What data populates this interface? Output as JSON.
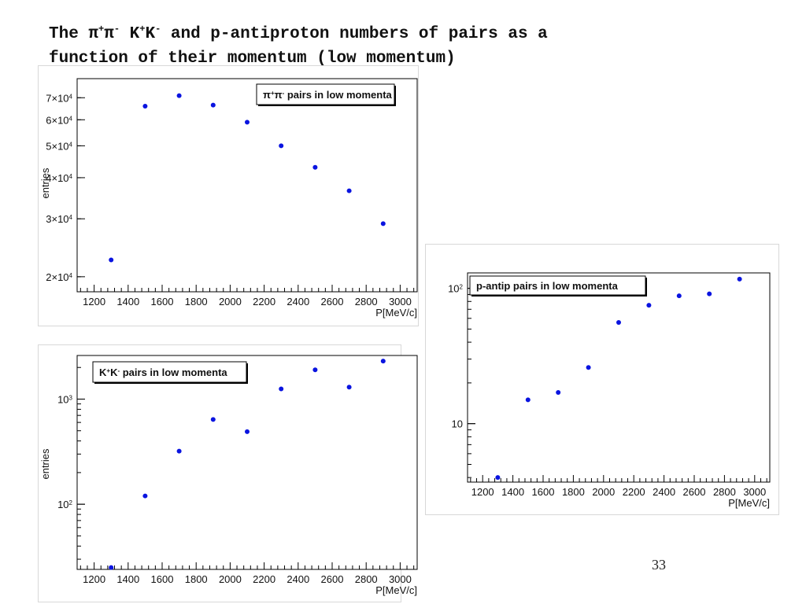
{
  "slide": {
    "title_parts": [
      "The π",
      "+",
      "π",
      "-",
      " K",
      "+",
      "K",
      "-",
      " and p-antiproton numbers of pairs as a"
    ],
    "title_line2": "function of their momentum (low momentum)",
    "page_number": "33"
  },
  "colors": {
    "marker": "#0a14e0",
    "axis": "#000000",
    "frame_bg": "#ffffff",
    "slide_bg": "#ffffff"
  },
  "chart_data": [
    {
      "id": "pipi",
      "type": "scatter",
      "legend_parts": [
        "π",
        "+",
        "π",
        "-",
        " pairs in low momenta"
      ],
      "legend_position": "top-right",
      "xlabel": "P[MeV/c]",
      "ylabel": "entries",
      "yscale": "log",
      "xlim": [
        1100,
        3100
      ],
      "ylim": [
        18000,
        80000
      ],
      "x_ticks": [
        1200,
        1400,
        1600,
        1800,
        2000,
        2200,
        2400,
        2600,
        2800,
        3000
      ],
      "y_ticks": [
        {
          "value": 20000,
          "mant": "2×10",
          "exp": "4"
        },
        {
          "value": 30000,
          "mant": "3×10",
          "exp": "4"
        },
        {
          "value": 40000,
          "mant": "4×10",
          "exp": "4"
        },
        {
          "value": 50000,
          "mant": "5×10",
          "exp": "4"
        },
        {
          "value": 60000,
          "mant": "6×10",
          "exp": "4"
        },
        {
          "value": 70000,
          "mant": "7×10",
          "exp": "4"
        }
      ],
      "x": [
        1300,
        1500,
        1700,
        1900,
        2100,
        2300,
        2500,
        2700,
        2900
      ],
      "y": [
        22500,
        66000,
        71000,
        66500,
        59000,
        50000,
        43000,
        36500,
        29000
      ]
    },
    {
      "id": "kk",
      "type": "scatter",
      "legend_parts": [
        "K",
        "+",
        "K",
        "-",
        " pairs in low momenta"
      ],
      "legend_position": "top-left",
      "xlabel": "P[MeV/c]",
      "ylabel": "entries",
      "yscale": "log",
      "xlim": [
        1100,
        3100
      ],
      "ylim": [
        24,
        2600
      ],
      "x_ticks": [
        1200,
        1400,
        1600,
        1800,
        2000,
        2200,
        2400,
        2600,
        2800,
        3000
      ],
      "y_ticks": [
        {
          "value": 100,
          "mant": "10",
          "exp": "2"
        },
        {
          "value": 1000,
          "mant": "10",
          "exp": "3"
        }
      ],
      "x": [
        1300,
        1500,
        1700,
        1900,
        2100,
        2300,
        2500,
        2700,
        2900
      ],
      "y": [
        25,
        120,
        320,
        640,
        490,
        1250,
        1900,
        1300,
        2300
      ]
    },
    {
      "id": "ppbar",
      "type": "scatter",
      "legend_parts": [
        "p-antip pairs in low momenta"
      ],
      "legend_position": "top-left",
      "xlabel": "P[MeV/c]",
      "ylabel": "",
      "yscale": "log",
      "xlim": [
        1100,
        3100
      ],
      "ylim": [
        3.7,
        130
      ],
      "x_ticks": [
        1200,
        1400,
        1600,
        1800,
        2000,
        2200,
        2400,
        2600,
        2800,
        3000
      ],
      "y_ticks": [
        {
          "value": 10,
          "mant": "10",
          "exp": ""
        },
        {
          "value": 100,
          "mant": "10",
          "exp": "2"
        }
      ],
      "x": [
        1300,
        1500,
        1700,
        1900,
        2100,
        2300,
        2500,
        2700,
        2900
      ],
      "y": [
        4,
        15,
        17,
        26,
        56,
        75,
        88,
        91,
        117
      ]
    }
  ]
}
